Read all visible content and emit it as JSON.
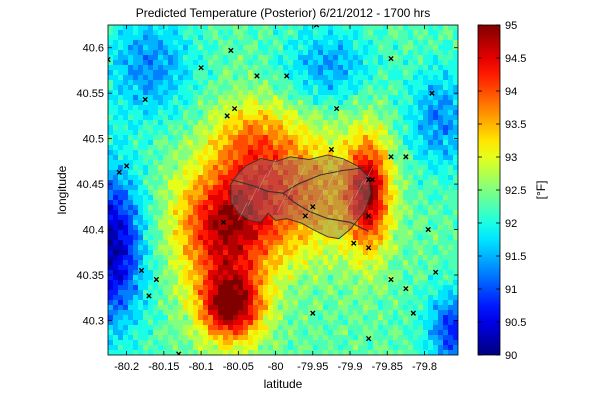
{
  "chart_data": {
    "type": "heatmap",
    "title": "Predicted Temperature (Posterior)   6/21/2012 - 1700 hrs",
    "xlabel": "latitude",
    "ylabel": "longitude",
    "xlim": [
      -80.225,
      -79.755
    ],
    "ylim": [
      40.262,
      40.625
    ],
    "xticks": [
      -80.2,
      -80.15,
      -80.1,
      -80.05,
      -80,
      -79.95,
      -79.9,
      -79.85,
      -79.8
    ],
    "xtick_labels": [
      "-80.2",
      "-80.15",
      "-80.1",
      "-80.05",
      "-80",
      "-79.95",
      "-79.9",
      "-79.85",
      "-79.8"
    ],
    "yticks": [
      40.3,
      40.35,
      40.4,
      40.45,
      40.5,
      40.55,
      40.6
    ],
    "ytick_labels": [
      "40.3",
      "40.35",
      "40.4",
      "40.45",
      "40.5",
      "40.55",
      "40.6"
    ],
    "colorbar": {
      "label": "[°F]",
      "min": 90,
      "max": 95,
      "colormap": "jet",
      "ticks": [
        90,
        90.5,
        91,
        91.5,
        92,
        92.5,
        93,
        93.5,
        94,
        94.5,
        95
      ],
      "tick_labels": [
        "90",
        "90.5",
        "91",
        "91.5",
        "92",
        "92.5",
        "93",
        "93.5",
        "94",
        "94.5",
        "95"
      ]
    },
    "hotspots": [
      {
        "x": -80.06,
        "y": 40.315,
        "value": 95.0,
        "sx": 0.03,
        "sy": 0.028
      },
      {
        "x": -80.07,
        "y": 40.4,
        "value": 94.4,
        "sx": 0.045,
        "sy": 0.045
      },
      {
        "x": -79.875,
        "y": 40.44,
        "value": 94.5,
        "sx": 0.02,
        "sy": 0.045
      },
      {
        "x": -79.98,
        "y": 40.44,
        "value": 93.8,
        "sx": 0.07,
        "sy": 0.05
      },
      {
        "x": -80.03,
        "y": 40.5,
        "value": 93.3,
        "sx": 0.04,
        "sy": 0.03
      }
    ],
    "coldspots": [
      {
        "x": -80.22,
        "y": 40.38,
        "value": 90.2,
        "sx": 0.03,
        "sy": 0.06
      },
      {
        "x": -79.76,
        "y": 40.29,
        "value": 90.8,
        "sx": 0.025,
        "sy": 0.03
      },
      {
        "x": -79.78,
        "y": 40.52,
        "value": 91.3,
        "sx": 0.03,
        "sy": 0.04
      },
      {
        "x": -79.93,
        "y": 40.58,
        "value": 91.4,
        "sx": 0.04,
        "sy": 0.03
      },
      {
        "x": -80.17,
        "y": 40.58,
        "value": 91.3,
        "sx": 0.04,
        "sy": 0.04
      }
    ],
    "background_value": 92.3,
    "stations": [
      {
        "x": -80.225,
        "y": 40.587
      },
      {
        "x": -80.175,
        "y": 40.543
      },
      {
        "x": -80.2,
        "y": 40.47
      },
      {
        "x": -80.21,
        "y": 40.463
      },
      {
        "x": -80.1,
        "y": 40.578
      },
      {
        "x": -80.06,
        "y": 40.597
      },
      {
        "x": -80.065,
        "y": 40.525
      },
      {
        "x": -80.055,
        "y": 40.533
      },
      {
        "x": -80.025,
        "y": 40.569
      },
      {
        "x": -79.985,
        "y": 40.569
      },
      {
        "x": -79.945,
        "y": 40.625
      },
      {
        "x": -79.918,
        "y": 40.533
      },
      {
        "x": -79.925,
        "y": 40.488
      },
      {
        "x": -79.845,
        "y": 40.588
      },
      {
        "x": -79.79,
        "y": 40.55
      },
      {
        "x": -79.845,
        "y": 40.48
      },
      {
        "x": -79.825,
        "y": 40.48
      },
      {
        "x": -79.875,
        "y": 40.455
      },
      {
        "x": -79.87,
        "y": 40.455
      },
      {
        "x": -79.95,
        "y": 40.425
      },
      {
        "x": -79.875,
        "y": 40.415
      },
      {
        "x": -79.96,
        "y": 40.415
      },
      {
        "x": -79.795,
        "y": 40.4
      },
      {
        "x": -79.895,
        "y": 40.385
      },
      {
        "x": -79.875,
        "y": 40.38
      },
      {
        "x": -80.07,
        "y": 40.408
      },
      {
        "x": -80.18,
        "y": 40.355
      },
      {
        "x": -80.16,
        "y": 40.345
      },
      {
        "x": -80.17,
        "y": 40.327
      },
      {
        "x": -79.845,
        "y": 40.345
      },
      {
        "x": -79.825,
        "y": 40.335
      },
      {
        "x": -79.785,
        "y": 40.353
      },
      {
        "x": -79.95,
        "y": 40.308
      },
      {
        "x": -79.815,
        "y": 40.308
      },
      {
        "x": -79.875,
        "y": 40.28
      },
      {
        "x": -80.13,
        "y": 40.263
      }
    ]
  }
}
